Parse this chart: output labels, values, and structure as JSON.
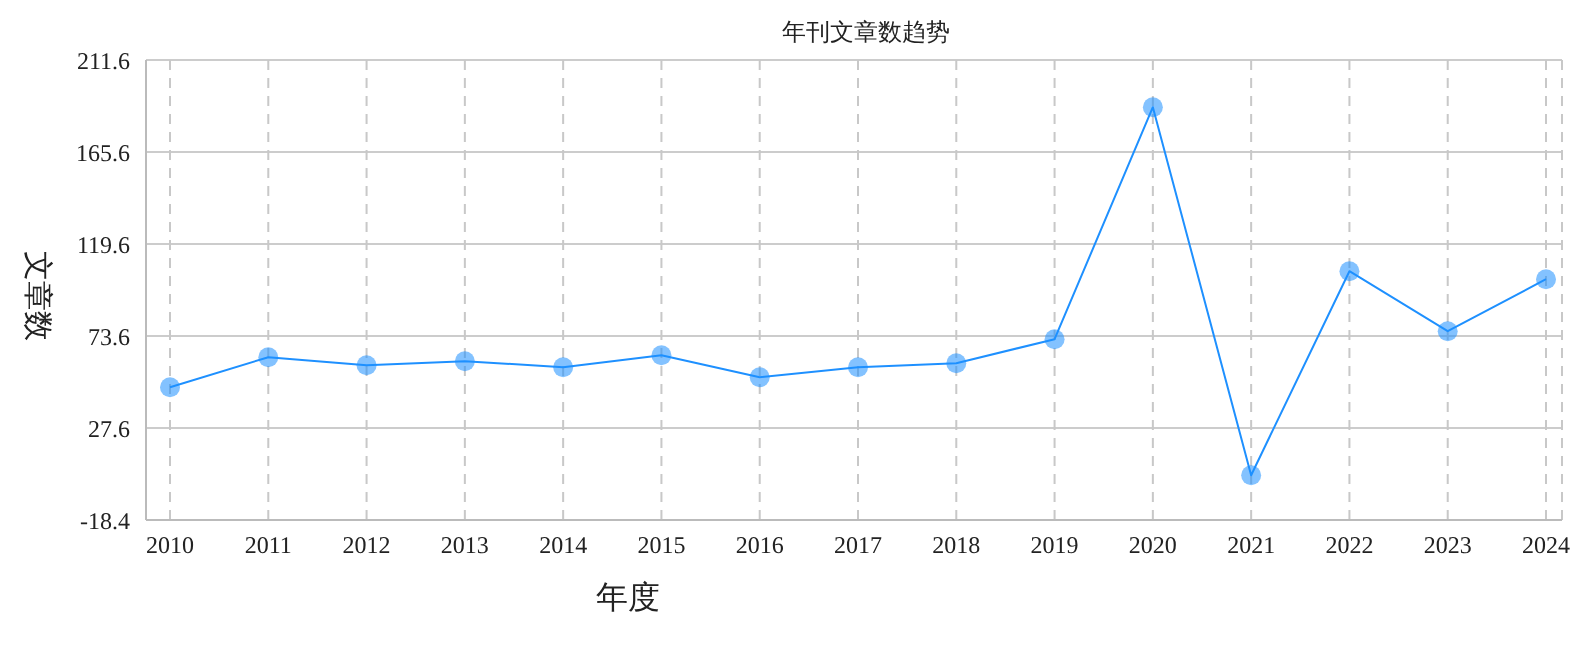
{
  "chart_data": {
    "type": "line",
    "title": "年刊文章数趋势",
    "xlabel": "年度",
    "ylabel": "文章数",
    "categories": [
      "2010",
      "2011",
      "2012",
      "2013",
      "2014",
      "2015",
      "2016",
      "2017",
      "2018",
      "2019",
      "2020",
      "2021",
      "2022",
      "2023",
      "2024"
    ],
    "series": [
      {
        "color": "#1e90ff",
        "values": [
          48,
          63,
          59,
          61,
          58,
          64,
          53,
          58,
          60,
          72,
          188,
          4,
          106,
          76,
          102
        ]
      }
    ],
    "ylim": [
      -18.4,
      211.6
    ],
    "yticks": [
      -18.4,
      27.6,
      73.6,
      119.6,
      165.6,
      211.6
    ],
    "grid": true,
    "marker": "circle",
    "line_style": "solid"
  }
}
